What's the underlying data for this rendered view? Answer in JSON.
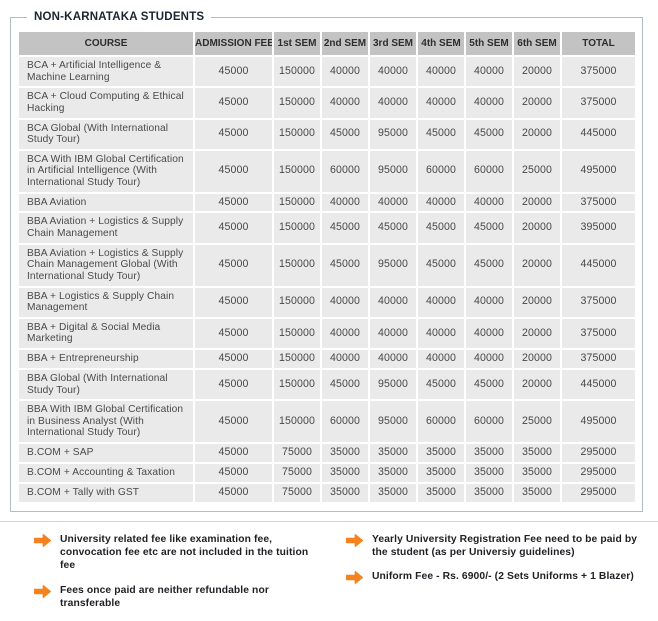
{
  "panel": {
    "title": "NON-KARNATAKA STUDENTS"
  },
  "table": {
    "columns": [
      "COURSE",
      "ADMISSION FEE",
      "1st SEM",
      "2nd SEM",
      "3rd SEM",
      "4th SEM",
      "5th SEM",
      "6th SEM",
      "TOTAL"
    ],
    "rows": [
      {
        "course": "BCA + Artificial Intelligence & Machine Learning",
        "values": [
          45000,
          150000,
          40000,
          40000,
          40000,
          40000,
          20000,
          375000
        ]
      },
      {
        "course": "BCA + Cloud Computing & Ethical Hacking",
        "values": [
          45000,
          150000,
          40000,
          40000,
          40000,
          40000,
          20000,
          375000
        ]
      },
      {
        "course": "BCA Global (With International Study Tour)",
        "values": [
          45000,
          150000,
          45000,
          95000,
          45000,
          45000,
          20000,
          445000
        ]
      },
      {
        "course": "BCA With IBM Global Certification in Artificial Intelligence (With International Study Tour)",
        "values": [
          45000,
          150000,
          60000,
          95000,
          60000,
          60000,
          25000,
          495000
        ]
      },
      {
        "course": "BBA Aviation",
        "values": [
          45000,
          150000,
          40000,
          40000,
          40000,
          40000,
          20000,
          375000
        ]
      },
      {
        "course": "BBA Aviation + Logistics & Supply Chain Management",
        "values": [
          45000,
          150000,
          45000,
          45000,
          45000,
          45000,
          20000,
          395000
        ]
      },
      {
        "course": "BBA Aviation + Logistics & Supply Chain Management Global (With International Study Tour)",
        "values": [
          45000,
          150000,
          45000,
          95000,
          45000,
          45000,
          20000,
          445000
        ]
      },
      {
        "course": "BBA + Logistics & Supply Chain Management",
        "values": [
          45000,
          150000,
          40000,
          40000,
          40000,
          40000,
          20000,
          375000
        ]
      },
      {
        "course": "BBA + Digital & Social Media Marketing",
        "values": [
          45000,
          150000,
          40000,
          40000,
          40000,
          40000,
          20000,
          375000
        ]
      },
      {
        "course": "BBA + Entrepreneurship",
        "values": [
          45000,
          150000,
          40000,
          40000,
          40000,
          40000,
          20000,
          375000
        ]
      },
      {
        "course": "BBA Global (With International Study Tour)",
        "values": [
          45000,
          150000,
          45000,
          95000,
          45000,
          45000,
          20000,
          445000
        ]
      },
      {
        "course": "BBA With IBM Global Certification in Business Analyst (With International Study Tour)",
        "values": [
          45000,
          150000,
          60000,
          95000,
          60000,
          60000,
          25000,
          495000
        ]
      },
      {
        "course": "B.COM + SAP",
        "values": [
          45000,
          75000,
          35000,
          35000,
          35000,
          35000,
          35000,
          295000
        ]
      },
      {
        "course": "B.COM + Accounting & Taxation",
        "values": [
          45000,
          75000,
          35000,
          35000,
          35000,
          35000,
          35000,
          295000
        ]
      },
      {
        "course": "B.COM + Tally with GST",
        "values": [
          45000,
          75000,
          35000,
          35000,
          35000,
          35000,
          35000,
          295000
        ]
      }
    ]
  },
  "notes": {
    "left": [
      "University related fee like examination fee, convocation fee etc are not included in the tuition fee",
      "Fees once paid are neither refundable nor transferable"
    ],
    "right": [
      "Yearly University Registration Fee need to be paid by the student (as per Universiy guidelines)",
      "Uniform Fee - Rs. 6900/- (2 Sets Uniforms + 1 Blazer)"
    ]
  },
  "icons": {
    "note_bullet": "arrow-right-icon"
  },
  "colors": {
    "accent_orange": "#F5821F",
    "header_cell_bg": "#C3C3C3",
    "row_cell_bg": "#EAEAEA",
    "box_border": "#B3BCBF",
    "title_text": "#1C2430"
  }
}
